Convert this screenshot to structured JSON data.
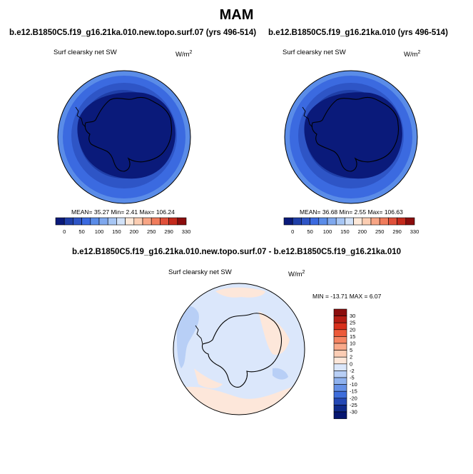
{
  "title": "MAM",
  "panels": [
    {
      "case_title": "b.e12.B1850C5.f19_g16.21ka.010.new.topo.surf.07 (yrs 496-514)",
      "field_label": "Surf clearsky net SW",
      "units_base": "W/m",
      "units_exp": "2",
      "stats": "MEAN=  35.27  Min=    2.41  Max= 106.24",
      "colorbar": {
        "colors": [
          "#0a1a7a",
          "#1f3fa8",
          "#2e55c6",
          "#3b6ae0",
          "#5a8ce8",
          "#7fa8ee",
          "#a7c6f4",
          "#d2e2f8",
          "#fde8d8",
          "#fbcdb2",
          "#f7a585",
          "#f07c5c",
          "#e0503a",
          "#c42a1c",
          "#8b0d0d"
        ],
        "labels": [
          "0",
          "50",
          "100",
          "150",
          "200",
          "250",
          "290",
          "330"
        ]
      }
    },
    {
      "case_title": "b.e12.B1850C5.f19_g16.21ka.010 (yrs 496-514)",
      "field_label": "Surf clearsky net SW",
      "units_base": "W/m",
      "units_exp": "2",
      "stats": "MEAN=  36.68  Min=    2.55  Max= 106.63",
      "colorbar": {
        "colors": [
          "#0a1a7a",
          "#1f3fa8",
          "#2e55c6",
          "#3b6ae0",
          "#5a8ce8",
          "#7fa8ee",
          "#a7c6f4",
          "#d2e2f8",
          "#fde8d8",
          "#fbcdb2",
          "#f7a585",
          "#f07c5c",
          "#e0503a",
          "#c42a1c",
          "#8b0d0d"
        ],
        "labels": [
          "0",
          "50",
          "100",
          "150",
          "200",
          "250",
          "290",
          "330"
        ]
      }
    }
  ],
  "diff": {
    "title": "b.e12.B1850C5.f19_g16.21ka.010.new.topo.surf.07 - b.e12.B1850C5.f19_g16.21ka.010",
    "field_label": "Surf clearsky net SW",
    "units_base": "W/m",
    "units_exp": "2",
    "stats": "MIN = -13.71 MAX =   6.07",
    "colorbar": {
      "labels": [
        "30",
        "25",
        "20",
        "15",
        "10",
        "5",
        "2",
        "0",
        "-2",
        "-5",
        "-10",
        "-15",
        "-20",
        "-25",
        "-30"
      ],
      "colors": [
        "#8b0d0d",
        "#b51d14",
        "#d8301c",
        "#ec5a3a",
        "#f58462",
        "#f9a98a",
        "#fbcdb5",
        "#fde7da",
        "#dbe7fb",
        "#b8cff6",
        "#8fb2ef",
        "#6590e6",
        "#3e6ddb",
        "#2448b5",
        "#0f2a8a",
        "#061670"
      ]
    }
  }
}
